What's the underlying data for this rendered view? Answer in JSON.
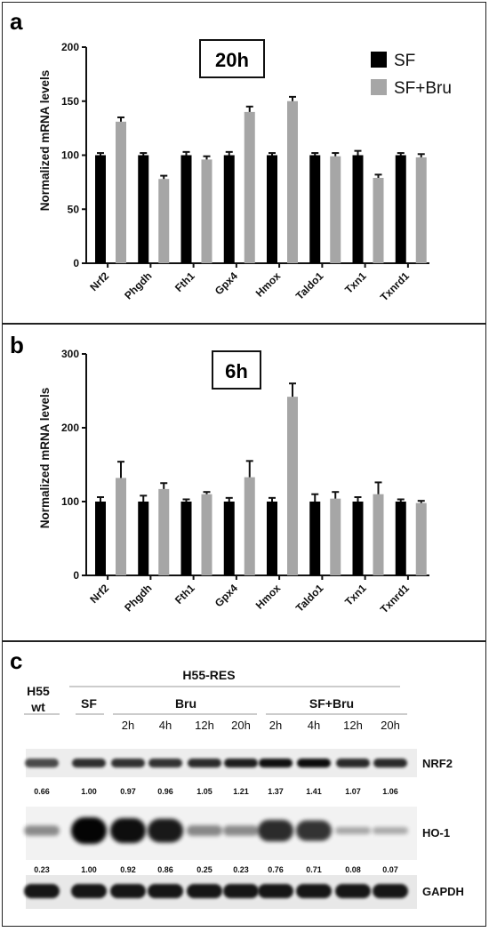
{
  "legend": {
    "sf": "SF",
    "sfbru": "SF+Bru"
  },
  "colors": {
    "sf": "#000000",
    "sfbru": "#a6a6a6"
  },
  "chart_data": [
    {
      "type": "bar",
      "panel": "a",
      "time_label": "20h",
      "ylabel": "Normalized mRNA levels",
      "ylim": [
        0,
        200
      ],
      "yticks": [
        0,
        50,
        100,
        150,
        200
      ],
      "categories": [
        "Nrf2",
        "Phgdh",
        "Fth1",
        "Gpx4",
        "Hmox",
        "Taldo1",
        "Txn1",
        "Txnrd1"
      ],
      "series": [
        {
          "name": "SF",
          "values": [
            100,
            100,
            100,
            100,
            100,
            100,
            100,
            100
          ],
          "errors": [
            2,
            2,
            3,
            3,
            2,
            2,
            4,
            2
          ]
        },
        {
          "name": "SF+Bru",
          "values": [
            131,
            78,
            96,
            140,
            150,
            99,
            79,
            98
          ],
          "errors": [
            4,
            3,
            3,
            5,
            4,
            3,
            3,
            3
          ]
        }
      ]
    },
    {
      "type": "bar",
      "panel": "b",
      "time_label": "6h",
      "ylabel": "Normalized mRNA levels",
      "ylim": [
        0,
        300
      ],
      "yticks": [
        0,
        100,
        200,
        300
      ],
      "categories": [
        "Nrf2",
        "Phgdh",
        "Fth1",
        "Gpx4",
        "Hmox",
        "Taldo1",
        "Txn1",
        "Txnrd1"
      ],
      "series": [
        {
          "name": "SF",
          "values": [
            100,
            100,
            100,
            100,
            100,
            100,
            100,
            100
          ],
          "errors": [
            6,
            8,
            3,
            5,
            5,
            10,
            6,
            3
          ]
        },
        {
          "name": "SF+Bru",
          "values": [
            132,
            117,
            110,
            133,
            242,
            104,
            110,
            98
          ],
          "errors": [
            22,
            8,
            3,
            22,
            18,
            9,
            16,
            3
          ]
        }
      ]
    }
  ],
  "western": {
    "panel": "c",
    "h55wt_line1": "H55",
    "h55wt_line2": "wt",
    "h55res": "H55-RES",
    "sf": "SF",
    "bru": "Bru",
    "sfbru": "SF+Bru",
    "times": [
      "2h",
      "4h",
      "12h",
      "20h",
      "2h",
      "4h",
      "12h",
      "20h"
    ],
    "proteins": [
      "NRF2",
      "HO-1",
      "GAPDH"
    ],
    "nrf2_values": [
      "0.66",
      "1.00",
      "0.97",
      "0.96",
      "1.05",
      "1.21",
      "1.37",
      "1.41",
      "1.07",
      "1.06"
    ],
    "ho1_values": [
      "0.23",
      "1.00",
      "0.92",
      "0.86",
      "0.25",
      "0.23",
      "0.76",
      "0.71",
      "0.08",
      "0.07"
    ]
  }
}
